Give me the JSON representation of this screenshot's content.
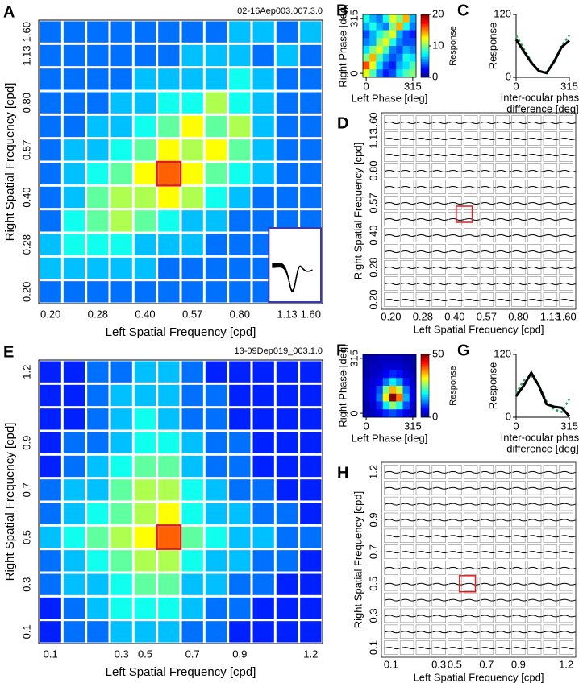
{
  "panels": {
    "A": {
      "label": "A",
      "id_text": "02-16Aep003.007.3.0",
      "xlabel": "Left Spatial Frequency [cpd]",
      "ylabel": "Right Spatial Frequency [cpd]",
      "xticks": [
        "0.20",
        null,
        "0.28",
        null,
        "0.40",
        null,
        "0.57",
        null,
        "0.80",
        null,
        "1.13",
        "1.60"
      ],
      "yticks": [
        "0.20",
        null,
        "0.28",
        null,
        "0.40",
        null,
        "0.57",
        null,
        "0.80",
        null,
        "1.13",
        "1.60"
      ],
      "matrix": [
        [
          2,
          2,
          2,
          2,
          2,
          2,
          2,
          2,
          3,
          3,
          2,
          3
        ],
        [
          2,
          2,
          2,
          2,
          2,
          2,
          3,
          3,
          3,
          2,
          3,
          2
        ],
        [
          2,
          2,
          2,
          2,
          3,
          3,
          3,
          3,
          4,
          3,
          2,
          2
        ],
        [
          2,
          2,
          2,
          3,
          3,
          4,
          4,
          6,
          4,
          3,
          2,
          2
        ],
        [
          2,
          2,
          3,
          3,
          4,
          5,
          7,
          5,
          6,
          3,
          2,
          2
        ],
        [
          2,
          3,
          3,
          4,
          5,
          7,
          6,
          7,
          5,
          3,
          2,
          2
        ],
        [
          2,
          3,
          4,
          5,
          7,
          9,
          7,
          5,
          4,
          3,
          2,
          2
        ],
        [
          2,
          3,
          5,
          6,
          6,
          7,
          6,
          4,
          3,
          2,
          2,
          2
        ],
        [
          2,
          4,
          5,
          6,
          5,
          4,
          3,
          3,
          2,
          2,
          2,
          2
        ],
        [
          3,
          4,
          4,
          4,
          3,
          3,
          3,
          2,
          2,
          2,
          2,
          2
        ],
        [
          3,
          3,
          3,
          3,
          3,
          2,
          2,
          2,
          2,
          2,
          2,
          2
        ],
        [
          2,
          2,
          2,
          2,
          2,
          2,
          2,
          2,
          2,
          2,
          2,
          2
        ]
      ]
    },
    "B": {
      "label": "B",
      "xlabel": "Left Phase [deg]",
      "ylabel": "Right Phase [deg]",
      "colorbar_label": "Response",
      "xticks": [
        0,
        315
      ],
      "yticks": [
        0,
        315
      ],
      "xlim": [
        0,
        315
      ],
      "ylim": [
        0,
        315
      ],
      "clim": [
        0,
        20
      ],
      "cticks": [
        0,
        10,
        20
      ],
      "matrix": [
        [
          8,
          6,
          5,
          8,
          12,
          10,
          14,
          6
        ],
        [
          6,
          8,
          6,
          5,
          10,
          14,
          8,
          5
        ],
        [
          4,
          6,
          8,
          10,
          12,
          6,
          4,
          3
        ],
        [
          5,
          6,
          10,
          12,
          8,
          5,
          4,
          4
        ],
        [
          7,
          10,
          12,
          9,
          5,
          4,
          6,
          5
        ],
        [
          10,
          14,
          9,
          6,
          4,
          5,
          8,
          7
        ],
        [
          16,
          12,
          7,
          4,
          3,
          6,
          7,
          9
        ],
        [
          12,
          9,
          5,
          3,
          4,
          7,
          9,
          10
        ]
      ]
    },
    "C": {
      "label": "C",
      "type": "line",
      "ylabel": "Response",
      "xlabel": [
        "Inter-ocular phase",
        "difference [deg]"
      ],
      "x": [
        0,
        45,
        90,
        135,
        180,
        225,
        270,
        315
      ],
      "xlim": [
        0,
        315
      ],
      "xticks": [
        0,
        315
      ],
      "ylim": [
        0,
        120
      ],
      "yticks": [
        0,
        120
      ],
      "series": [
        {
          "color": "#000000",
          "values": [
            72,
            50,
            28,
            12,
            8,
            30,
            58,
            70
          ]
        },
        {
          "color": "#2ca25f",
          "dashed": true,
          "values": [
            80,
            55,
            30,
            12,
            10,
            32,
            60,
            80
          ]
        }
      ]
    },
    "D": {
      "label": "D",
      "xlabel": "Left Spatial Frequency [cpd]",
      "ylabel": "Right Spatial Frequency [cpd]",
      "xticks": [
        "0.20",
        null,
        "0.28",
        null,
        "0.40",
        null,
        "0.57",
        null,
        "0.80",
        null,
        "1.13",
        "1.60"
      ],
      "yticks": [
        "0.20",
        null,
        "0.28",
        null,
        "0.40",
        null,
        "0.57",
        null,
        "0.80",
        null,
        "1.13",
        "1.60"
      ]
    },
    "E": {
      "label": "E",
      "id_text": "13-09Dep019_003.1.0",
      "xlabel": "Left Spatial Frequency [cpd]",
      "ylabel": "Right Spatial Frequency [cpd]",
      "xticks": [
        "0.1",
        null,
        null,
        "0.3",
        "0.5",
        null,
        "0.7",
        null,
        "0.9",
        null,
        null,
        "1.2"
      ],
      "yticks": [
        "0.1",
        null,
        "0.3",
        null,
        "0.5",
        null,
        "0.7",
        null,
        "0.9",
        null,
        null,
        "1.2"
      ],
      "matrix": [
        [
          1,
          1,
          2,
          2,
          3,
          3,
          2,
          1,
          1,
          1,
          1,
          1
        ],
        [
          1,
          1,
          2,
          3,
          3,
          3,
          2,
          2,
          1,
          1,
          1,
          1
        ],
        [
          1,
          1,
          2,
          3,
          4,
          3,
          2,
          2,
          1,
          1,
          1,
          1
        ],
        [
          1,
          2,
          2,
          3,
          4,
          4,
          3,
          2,
          2,
          1,
          1,
          1
        ],
        [
          1,
          2,
          3,
          4,
          5,
          5,
          3,
          2,
          2,
          1,
          1,
          1
        ],
        [
          2,
          3,
          3,
          5,
          6,
          6,
          4,
          3,
          2,
          2,
          1,
          1
        ],
        [
          2,
          3,
          4,
          5,
          6,
          7,
          4,
          3,
          3,
          2,
          2,
          1
        ],
        [
          3,
          4,
          5,
          6,
          7,
          9,
          5,
          4,
          3,
          3,
          2,
          2
        ],
        [
          2,
          3,
          4,
          5,
          6,
          6,
          4,
          3,
          3,
          2,
          2,
          1
        ],
        [
          2,
          3,
          3,
          4,
          5,
          5,
          3,
          3,
          2,
          2,
          1,
          1
        ],
        [
          1,
          2,
          3,
          4,
          4,
          4,
          3,
          2,
          2,
          1,
          1,
          1
        ],
        [
          1,
          2,
          2,
          3,
          3,
          3,
          2,
          2,
          1,
          1,
          1,
          1
        ]
      ]
    },
    "F": {
      "label": "F",
      "xlabel": "Left Phase [deg]",
      "ylabel": "Right Phase [deg]",
      "colorbar_label": "Response",
      "xticks": [
        0,
        315
      ],
      "yticks": [
        0,
        315
      ],
      "xlim": [
        0,
        315
      ],
      "ylim": [
        0,
        315
      ],
      "clim": [
        0,
        50
      ],
      "cticks": [
        0,
        50
      ],
      "matrix": [
        [
          2,
          2,
          3,
          3,
          3,
          3,
          2,
          2
        ],
        [
          2,
          3,
          3,
          4,
          4,
          4,
          3,
          2
        ],
        [
          2,
          3,
          4,
          6,
          8,
          7,
          4,
          3
        ],
        [
          3,
          4,
          6,
          12,
          18,
          14,
          7,
          4
        ],
        [
          3,
          5,
          10,
          25,
          35,
          28,
          12,
          5
        ],
        [
          3,
          5,
          12,
          32,
          50,
          38,
          15,
          5
        ],
        [
          2,
          4,
          8,
          18,
          26,
          20,
          10,
          4
        ],
        [
          2,
          3,
          5,
          8,
          10,
          8,
          5,
          3
        ]
      ]
    },
    "G": {
      "label": "G",
      "type": "line",
      "ylabel": "Response",
      "xlabel": [
        "Inter-ocular phase",
        "difference [deg]"
      ],
      "x": [
        0,
        45,
        90,
        135,
        180,
        225,
        270,
        315
      ],
      "xlim": [
        0,
        315
      ],
      "xticks": [
        0,
        315
      ],
      "ylim": [
        0,
        120
      ],
      "yticks": [
        0,
        120
      ],
      "series": [
        {
          "color": "#000000",
          "values": [
            40,
            60,
            85,
            60,
            25,
            20,
            18,
            2
          ]
        },
        {
          "color": "#2ca25f",
          "dashed": true,
          "values": [
            45,
            70,
            80,
            60,
            30,
            15,
            10,
            35
          ]
        }
      ]
    },
    "H": {
      "label": "H",
      "xlabel": "Left Spatial Frequency [cpd]",
      "ylabel": "Right Spatial Frequency [cpd]",
      "xticks": [
        "0.1",
        null,
        null,
        "0.3",
        "0.5",
        null,
        "0.7",
        null,
        "0.9",
        null,
        null,
        "1.2"
      ],
      "yticks": [
        "0.1",
        null,
        "0.3",
        null,
        "0.5",
        null,
        "0.7",
        null,
        "0.9",
        null,
        null,
        "1.2"
      ]
    }
  }
}
